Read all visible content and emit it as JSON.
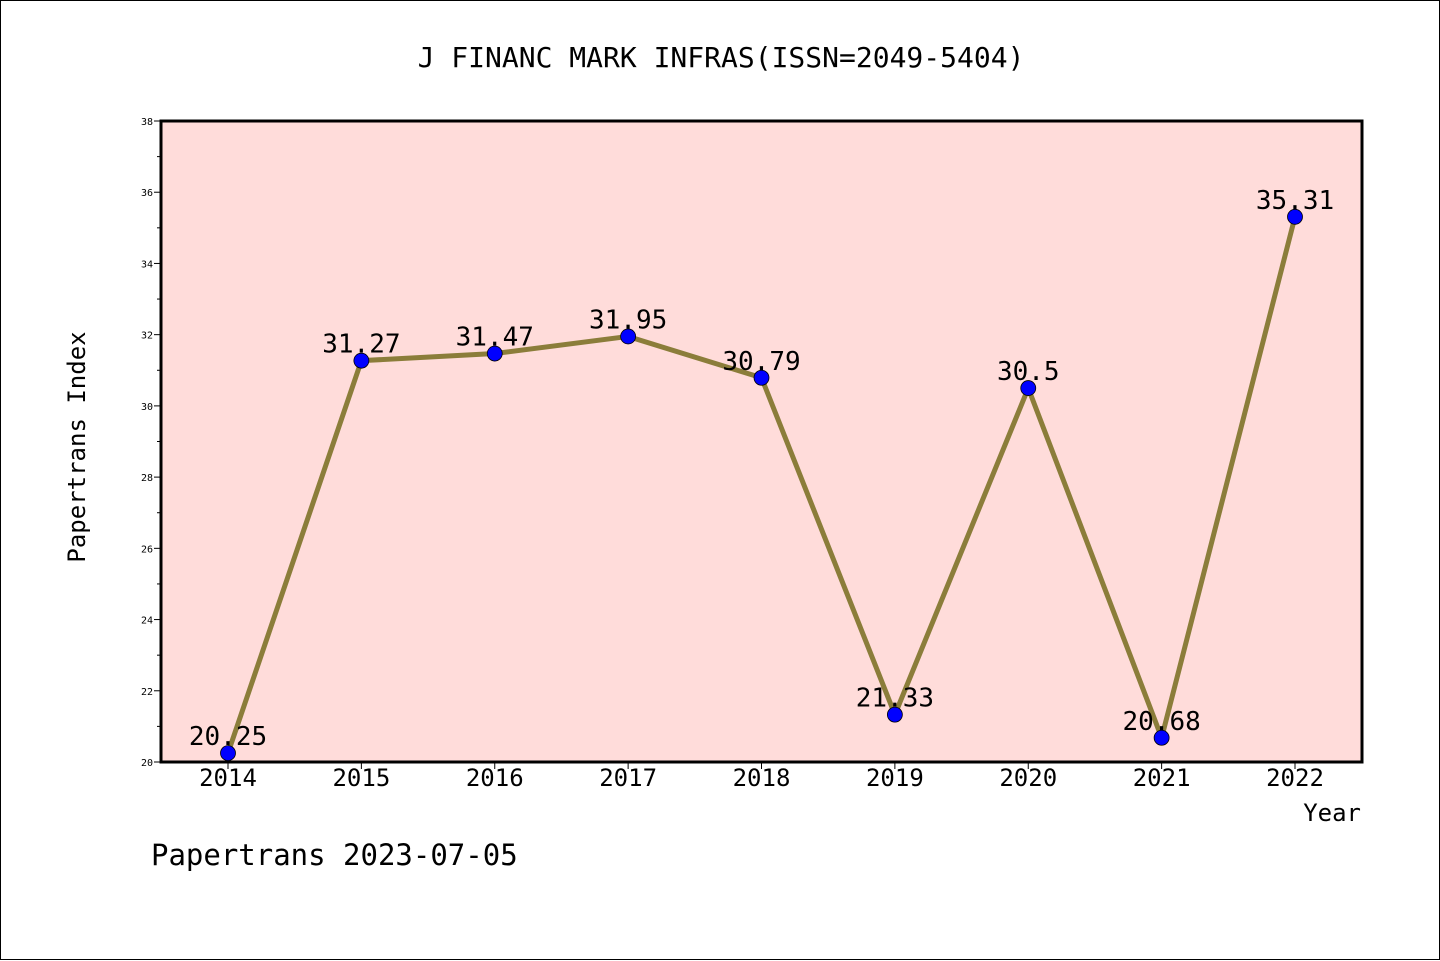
{
  "chart_data": {
    "type": "line",
    "title": "J FINANC MARK INFRAS(ISSN=2049-5404)",
    "xlabel": "Year",
    "ylabel": "Papertrans Index",
    "footer": "Papertrans 2023-07-05",
    "x": [
      "2014",
      "2015",
      "2016",
      "2017",
      "2018",
      "2019",
      "2020",
      "2021",
      "2022"
    ],
    "series": [
      {
        "values": [
          20.25,
          31.27,
          31.47,
          31.95,
          30.79,
          21.33,
          30.5,
          20.68,
          35.31
        ],
        "labels": [
          "20.25",
          "31.27",
          "31.47",
          "31.95",
          "30.79",
          "21.33",
          "30.5",
          "20.68",
          "35.31"
        ],
        "line_color": "#8B7D3A",
        "marker_color": "#0000FF"
      }
    ],
    "ylim": [
      20,
      38
    ],
    "yticks": [
      "20",
      "22",
      "24",
      "26",
      "28",
      "30",
      "32",
      "34",
      "36",
      "38"
    ],
    "plot_background": "#FFDCDA",
    "grid": false,
    "legend": "none"
  }
}
